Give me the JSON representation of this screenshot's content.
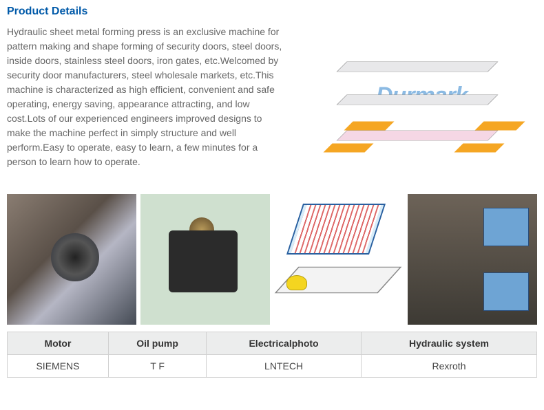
{
  "title": "Product Details",
  "description": "Hydraulic sheet metal forming press is an exclusive machine for pattern making and shape forming of security doors, steel doors, inside doors, stainless steel doors, iron gates, etc.Welcomed by security door manufacturers, steel wholesale markets, etc.This machine is characterized as high efficient, convenient and safe operating, energy saving, appearance attracting, and low cost.Lots of our experienced engineers improved designs to make the machine perfect in simply structure and well perform.Easy to operate, easy to learn, a few minutes for a person to learn how to operate.",
  "hero": {
    "watermark": "Durmark",
    "colors": {
      "plate": "#e8e8ea",
      "accent": "#f5a623",
      "panel": "#f5d7e5",
      "wm": "#7fb3e0"
    }
  },
  "thumbnails": [
    {
      "name": "motor-image",
      "alt": "Motor"
    },
    {
      "name": "oil-pump-image",
      "alt": "Oil pump"
    },
    {
      "name": "electrical-image",
      "alt": "Electricalphoto"
    },
    {
      "name": "hydraulic-image",
      "alt": "Hydraulic system"
    }
  ],
  "table": {
    "headers": [
      "Motor",
      "Oil pump",
      "Electricalphoto",
      "Hydraulic system"
    ],
    "row": [
      "SIEMENS",
      "T F",
      "LNTECH",
      "Rexroth"
    ],
    "header_bg": "#eceded",
    "border": "#d0d0d0"
  },
  "colors": {
    "title": "#015aa9",
    "text": "#666"
  }
}
